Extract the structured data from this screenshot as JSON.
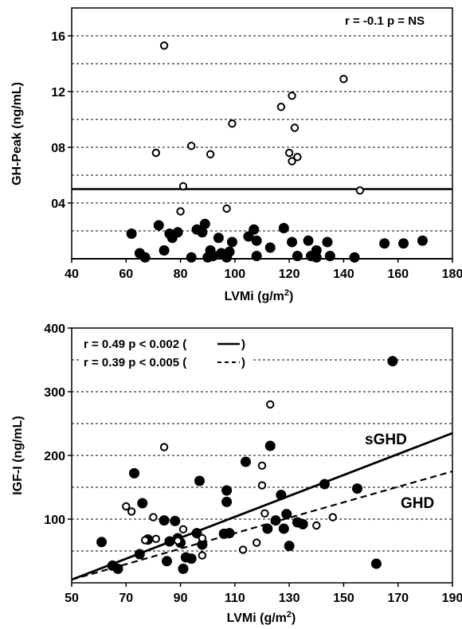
{
  "chart_data": [
    {
      "type": "scatter",
      "xlabel": "LVMi (g/m",
      "xlabel_sup": "2",
      "xlabel_close": ")",
      "ylabel": "GH-Peak (ng/mL)",
      "xlim": [
        40,
        180
      ],
      "ylim": [
        0,
        18
      ],
      "xticks": [
        40,
        60,
        80,
        100,
        120,
        140,
        160,
        180
      ],
      "yticks": [
        {
          "value": 4,
          "label": "04"
        },
        {
          "value": 8,
          "label": "08"
        },
        {
          "value": 12,
          "label": "12"
        },
        {
          "value": 16,
          "label": "16"
        }
      ],
      "dashed_gridlines": [
        2,
        4,
        6,
        8,
        10,
        12,
        14,
        16,
        18
      ],
      "threshold_line": 5,
      "annotation": "r = -0.1  p = NS",
      "series": [
        {
          "marker": "open",
          "points": [
            [
              74,
              15.3
            ],
            [
              140,
              12.9
            ],
            [
              121,
              11.7
            ],
            [
              117,
              10.9
            ],
            [
              99,
              9.7
            ],
            [
              122,
              9.4
            ],
            [
              84,
              8.1
            ],
            [
              71,
              7.6
            ],
            [
              91,
              7.5
            ],
            [
              120,
              7.6
            ],
            [
              123,
              7.3
            ],
            [
              121,
              7.0
            ],
            [
              81,
              5.2
            ],
            [
              146,
              4.9
            ],
            [
              80,
              3.4
            ],
            [
              97,
              3.6
            ]
          ]
        },
        {
          "marker": "filled",
          "points": [
            [
              62,
              1.8
            ],
            [
              65,
              0.4
            ],
            [
              67,
              0.1
            ],
            [
              72,
              2.4
            ],
            [
              74,
              0.6
            ],
            [
              76,
              1.8
            ],
            [
              77,
              1.5
            ],
            [
              79,
              1.9
            ],
            [
              84,
              0.1
            ],
            [
              86,
              2.1
            ],
            [
              88,
              1.9
            ],
            [
              89,
              2.5
            ],
            [
              90,
              0.1
            ],
            [
              91,
              0.6
            ],
            [
              92,
              0.2
            ],
            [
              94,
              1.5
            ],
            [
              95,
              0.4
            ],
            [
              97,
              0.1
            ],
            [
              98,
              0.5
            ],
            [
              99,
              1.2
            ],
            [
              105,
              1.6
            ],
            [
              107,
              2.1
            ],
            [
              108,
              1.3
            ],
            [
              108,
              0.2
            ],
            [
              113,
              0.8
            ],
            [
              118,
              2.2
            ],
            [
              121,
              1.2
            ],
            [
              123,
              0.2
            ],
            [
              127,
              1.3
            ],
            [
              128,
              0.2
            ],
            [
              130,
              0.6
            ],
            [
              130,
              0.1
            ],
            [
              134,
              1.2
            ],
            [
              135,
              0.2
            ],
            [
              144,
              0.1
            ],
            [
              155,
              1.1
            ],
            [
              162,
              1.1
            ],
            [
              169,
              1.3
            ]
          ]
        }
      ]
    },
    {
      "type": "scatter",
      "xlabel": "LVMi (g/m",
      "xlabel_sup": "2",
      "xlabel_close": ")",
      "ylabel": "IGF-I  (ng/mL)",
      "xlim": [
        50,
        190
      ],
      "ylim": [
        0,
        400
      ],
      "xticks": [
        50,
        70,
        90,
        110,
        130,
        150,
        170,
        190
      ],
      "yticks": [
        {
          "value": 100,
          "label": "100"
        },
        {
          "value": 200,
          "label": "200"
        },
        {
          "value": 300,
          "label": "300"
        },
        {
          "value": 400,
          "label": "400"
        }
      ],
      "dashed_gridlines": [
        50,
        100,
        150,
        200,
        250,
        300,
        350
      ],
      "annotations": [
        "r = 0.49  p < 0.002 (",
        "r = 0.39  p < 0.005 ("
      ],
      "line_labels": [
        "sGHD",
        "GHD"
      ],
      "regression_lines": [
        {
          "style": "solid",
          "from": [
            50,
            5
          ],
          "to": [
            190,
            235
          ]
        },
        {
          "style": "dashed",
          "from": [
            50,
            5
          ],
          "to": [
            190,
            175
          ]
        }
      ],
      "series": [
        {
          "marker": "filled",
          "points": [
            [
              61,
              64
            ],
            [
              65,
              27
            ],
            [
              67,
              22
            ],
            [
              73,
              172
            ],
            [
              75,
              45
            ],
            [
              76,
              125
            ],
            [
              78,
              68
            ],
            [
              84,
              98
            ],
            [
              85,
              34
            ],
            [
              86,
              65
            ],
            [
              88,
              97
            ],
            [
              89,
              70
            ],
            [
              90,
              63
            ],
            [
              91,
              22
            ],
            [
              92,
              40
            ],
            [
              94,
              38
            ],
            [
              96,
              78
            ],
            [
              97,
              160
            ],
            [
              98,
              60
            ],
            [
              106,
              77
            ],
            [
              107,
              127
            ],
            [
              107,
              145
            ],
            [
              108,
              78
            ],
            [
              114,
              190
            ],
            [
              122,
              85
            ],
            [
              123,
              215
            ],
            [
              125,
              98
            ],
            [
              127,
              138
            ],
            [
              128,
              85
            ],
            [
              129,
              108
            ],
            [
              130,
              58
            ],
            [
              133,
              95
            ],
            [
              135,
              92
            ],
            [
              143,
              155
            ],
            [
              155,
              148
            ],
            [
              162,
              30
            ],
            [
              168,
              348
            ]
          ]
        },
        {
          "marker": "open",
          "points": [
            [
              70,
              120
            ],
            [
              72,
              112
            ],
            [
              77,
              67
            ],
            [
              80,
              103
            ],
            [
              81,
              69
            ],
            [
              84,
              213
            ],
            [
              89,
              66
            ],
            [
              91,
              84
            ],
            [
              98,
              43
            ],
            [
              98,
              70
            ],
            [
              113,
              52
            ],
            [
              118,
              63
            ],
            [
              120,
              184
            ],
            [
              120,
              153
            ],
            [
              121,
              109
            ],
            [
              123,
              280
            ],
            [
              140,
              90
            ],
            [
              146,
              103
            ]
          ]
        }
      ]
    }
  ]
}
